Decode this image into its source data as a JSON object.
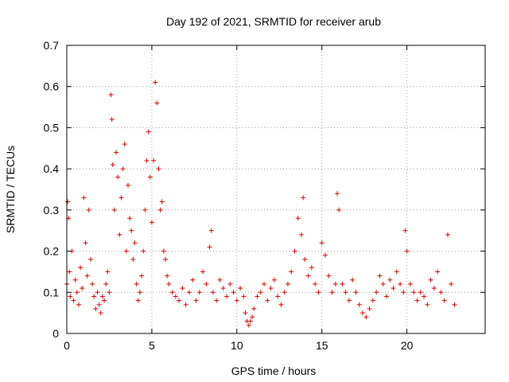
{
  "colors": {
    "series": "#e00000",
    "axis": "#000000",
    "grid": "#a0a0a0",
    "background": "#ffffff"
  },
  "chart_data": {
    "type": "scatter",
    "title": "Day 192 of 2021, SRMTID for receiver arub",
    "xlabel": "GPS time / hours",
    "ylabel": "SRMTID / TECUs",
    "xlim": [
      0,
      24.6
    ],
    "ylim": [
      0,
      0.7
    ],
    "xticks": [
      0,
      5,
      10,
      15,
      20
    ],
    "xtick_labels": [
      "0",
      "5",
      "10",
      "15",
      "20"
    ],
    "yticks": [
      0,
      0.1,
      0.2,
      0.3,
      0.4,
      0.5,
      0.6,
      0.7
    ],
    "ytick_labels": [
      "0",
      "0.1",
      "0.2",
      "0.3",
      "0.4",
      "0.5",
      "0.6",
      "0.7"
    ],
    "grid": true,
    "marker": "plus",
    "series": [
      {
        "name": "SRMTID",
        "x": [
          0.0,
          0.05,
          0.1,
          0.15,
          0.2,
          0.3,
          0.4,
          0.5,
          0.6,
          0.7,
          0.8,
          0.9,
          1.0,
          1.1,
          1.2,
          1.3,
          1.4,
          1.5,
          1.6,
          1.7,
          1.8,
          1.9,
          2.0,
          2.1,
          2.2,
          2.3,
          2.4,
          2.5,
          2.6,
          2.65,
          2.7,
          2.8,
          2.9,
          3.0,
          3.1,
          3.2,
          3.3,
          3.4,
          3.5,
          3.6,
          3.7,
          3.8,
          3.9,
          4.0,
          4.1,
          4.2,
          4.3,
          4.4,
          4.5,
          4.6,
          4.7,
          4.8,
          4.9,
          5.0,
          5.1,
          5.2,
          5.3,
          5.4,
          5.5,
          5.6,
          5.7,
          5.8,
          5.9,
          6.0,
          6.2,
          6.4,
          6.6,
          6.8,
          7.0,
          7.2,
          7.4,
          7.6,
          7.8,
          8.0,
          8.2,
          8.4,
          8.5,
          8.6,
          8.8,
          9.0,
          9.2,
          9.4,
          9.6,
          9.8,
          10.0,
          10.2,
          10.4,
          10.5,
          10.6,
          10.7,
          10.8,
          10.9,
          11.0,
          11.2,
          11.4,
          11.6,
          11.8,
          12.0,
          12.2,
          12.4,
          12.6,
          12.8,
          13.0,
          13.2,
          13.4,
          13.6,
          13.8,
          13.9,
          14.0,
          14.2,
          14.4,
          14.6,
          14.8,
          15.0,
          15.2,
          15.4,
          15.6,
          15.8,
          15.9,
          16.0,
          16.2,
          16.4,
          16.6,
          16.8,
          17.0,
          17.2,
          17.4,
          17.6,
          17.8,
          18.0,
          18.2,
          18.4,
          18.6,
          18.8,
          19.0,
          19.2,
          19.4,
          19.6,
          19.8,
          19.9,
          20.0,
          20.2,
          20.4,
          20.6,
          20.8,
          21.0,
          21.2,
          21.4,
          21.6,
          21.8,
          22.0,
          22.2,
          22.4,
          22.6,
          22.8
        ],
        "y": [
          0.12,
          0.32,
          0.28,
          0.15,
          0.09,
          0.2,
          0.08,
          0.13,
          0.1,
          0.07,
          0.16,
          0.11,
          0.33,
          0.22,
          0.14,
          0.3,
          0.18,
          0.12,
          0.09,
          0.06,
          0.1,
          0.07,
          0.05,
          0.09,
          0.08,
          0.12,
          0.15,
          0.1,
          0.58,
          0.52,
          0.41,
          0.3,
          0.44,
          0.38,
          0.24,
          0.33,
          0.4,
          0.46,
          0.2,
          0.36,
          0.28,
          0.25,
          0.18,
          0.22,
          0.12,
          0.08,
          0.1,
          0.14,
          0.2,
          0.3,
          0.42,
          0.49,
          0.38,
          0.27,
          0.42,
          0.61,
          0.56,
          0.4,
          0.3,
          0.32,
          0.2,
          0.18,
          0.14,
          0.12,
          0.1,
          0.09,
          0.08,
          0.11,
          0.07,
          0.1,
          0.13,
          0.08,
          0.1,
          0.15,
          0.12,
          0.21,
          0.25,
          0.1,
          0.08,
          0.13,
          0.11,
          0.09,
          0.12,
          0.1,
          0.08,
          0.11,
          0.09,
          0.05,
          0.03,
          0.02,
          0.03,
          0.04,
          0.06,
          0.09,
          0.1,
          0.12,
          0.08,
          0.11,
          0.13,
          0.09,
          0.07,
          0.1,
          0.12,
          0.15,
          0.2,
          0.28,
          0.24,
          0.33,
          0.18,
          0.14,
          0.16,
          0.12,
          0.1,
          0.22,
          0.19,
          0.14,
          0.1,
          0.12,
          0.34,
          0.3,
          0.12,
          0.1,
          0.08,
          0.13,
          0.1,
          0.07,
          0.05,
          0.04,
          0.06,
          0.08,
          0.1,
          0.14,
          0.12,
          0.09,
          0.13,
          0.11,
          0.15,
          0.12,
          0.1,
          0.25,
          0.2,
          0.12,
          0.1,
          0.08,
          0.1,
          0.09,
          0.07,
          0.13,
          0.11,
          0.15,
          0.1,
          0.08,
          0.24,
          0.12,
          0.07
        ]
      }
    ]
  }
}
